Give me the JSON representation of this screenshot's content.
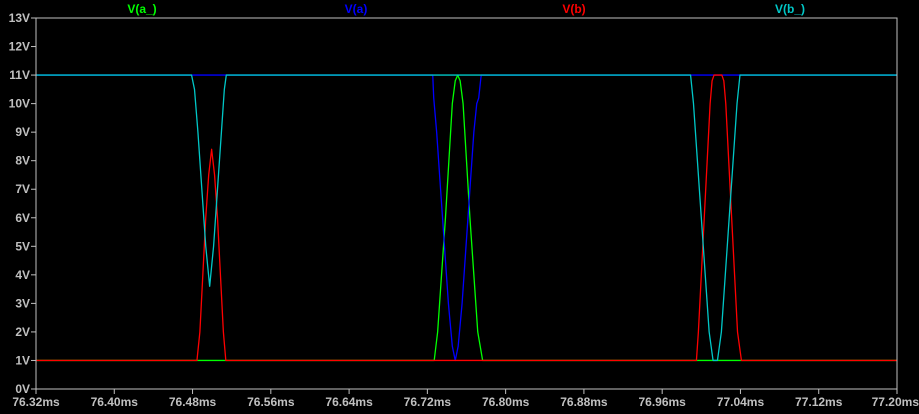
{
  "chart_data": {
    "type": "line",
    "title": "",
    "xlabel": "",
    "ylabel": "",
    "xlim": [
      76.32,
      77.2
    ],
    "ylim": [
      0,
      13
    ],
    "grid": false,
    "legend_placement": "top",
    "x_ticks": [
      "76.32ms",
      "76.40ms",
      "76.48ms",
      "76.56ms",
      "76.64ms",
      "76.72ms",
      "76.80ms",
      "76.88ms",
      "76.96ms",
      "77.04ms",
      "77.12ms",
      "77.20ms"
    ],
    "x_tick_values": [
      76.32,
      76.4,
      76.48,
      76.56,
      76.64,
      76.72,
      76.8,
      76.88,
      76.96,
      77.04,
      77.12,
      77.2
    ],
    "y_ticks": [
      "0V",
      "1V",
      "2V",
      "3V",
      "4V",
      "5V",
      "6V",
      "7V",
      "8V",
      "9V",
      "10V",
      "11V",
      "12V",
      "13V"
    ],
    "y_tick_values": [
      0,
      1,
      2,
      3,
      4,
      5,
      6,
      7,
      8,
      9,
      10,
      11,
      12,
      13
    ],
    "series": [
      {
        "name": "V(a_)",
        "color": "#00ff00",
        "points": [
          [
            76.32,
            1
          ],
          [
            76.727,
            1
          ],
          [
            76.7305,
            2
          ],
          [
            76.7345,
            4
          ],
          [
            76.7385,
            6
          ],
          [
            76.742,
            8
          ],
          [
            76.7455,
            10
          ],
          [
            76.7485,
            10.8
          ],
          [
            76.751,
            11
          ],
          [
            76.7535,
            10.8
          ],
          [
            76.7565,
            10
          ],
          [
            76.76,
            8
          ],
          [
            76.7635,
            6
          ],
          [
            76.7675,
            4
          ],
          [
            76.7715,
            2
          ],
          [
            76.7765,
            1
          ],
          [
            77.2,
            1
          ]
        ]
      },
      {
        "name": "V(a)",
        "color": "#0000ff",
        "points": [
          [
            76.32,
            11
          ],
          [
            76.7255,
            11
          ],
          [
            76.7265,
            10.2
          ],
          [
            76.7295,
            9
          ],
          [
            76.7335,
            7
          ],
          [
            76.7375,
            5
          ],
          [
            76.7415,
            3
          ],
          [
            76.7455,
            1.5
          ],
          [
            76.7485,
            1
          ],
          [
            76.7515,
            1.5
          ],
          [
            76.7555,
            3
          ],
          [
            76.7595,
            5
          ],
          [
            76.7635,
            7
          ],
          [
            76.7675,
            9
          ],
          [
            76.7705,
            10
          ],
          [
            76.7725,
            10.2
          ],
          [
            76.775,
            11
          ],
          [
            77.2,
            11
          ]
        ]
      },
      {
        "name": "V(b)",
        "color": "#ff0000",
        "points": [
          [
            76.32,
            1
          ],
          [
            76.4845,
            1
          ],
          [
            76.4875,
            2
          ],
          [
            76.4905,
            4
          ],
          [
            76.4935,
            6
          ],
          [
            76.4965,
            7.5
          ],
          [
            76.4995,
            8.4
          ],
          [
            76.5025,
            7.5
          ],
          [
            76.5055,
            6
          ],
          [
            76.5085,
            4
          ],
          [
            76.5115,
            2
          ],
          [
            76.514,
            1
          ],
          [
            76.995,
            1
          ],
          [
            76.997,
            2
          ],
          [
            77.0,
            4
          ],
          [
            77.003,
            6
          ],
          [
            77.006,
            8
          ],
          [
            77.009,
            10
          ],
          [
            77.011,
            10.8
          ],
          [
            77.013,
            11
          ],
          [
            77.021,
            11
          ],
          [
            77.023,
            10.8
          ],
          [
            77.025,
            10
          ],
          [
            77.028,
            8
          ],
          [
            77.031,
            6
          ],
          [
            77.034,
            4
          ],
          [
            77.037,
            2
          ],
          [
            77.041,
            1
          ],
          [
            77.2,
            1
          ]
        ]
      },
      {
        "name": "V(b_)",
        "color": "#00c8c8",
        "points": [
          [
            76.32,
            11
          ],
          [
            76.479,
            11
          ],
          [
            76.482,
            10.5
          ],
          [
            76.4855,
            9
          ],
          [
            76.4895,
            7
          ],
          [
            76.4935,
            5
          ],
          [
            76.4975,
            3.6
          ],
          [
            76.5015,
            5
          ],
          [
            76.5055,
            7
          ],
          [
            76.5095,
            9
          ],
          [
            76.5125,
            10.5
          ],
          [
            76.5145,
            11
          ],
          [
            76.989,
            11
          ],
          [
            76.992,
            10
          ],
          [
            76.996,
            8
          ],
          [
            77.0,
            6
          ],
          [
            77.004,
            4
          ],
          [
            77.008,
            2
          ],
          [
            77.012,
            1
          ],
          [
            77.0165,
            1
          ],
          [
            77.0205,
            2
          ],
          [
            77.0245,
            4
          ],
          [
            77.0285,
            6
          ],
          [
            77.0325,
            8
          ],
          [
            77.0365,
            10
          ],
          [
            77.0395,
            11
          ],
          [
            77.2,
            11
          ]
        ]
      }
    ]
  },
  "colors": {
    "background": "#000000",
    "axis": "#c0c0c0",
    "tick_text": "#c0c0c0"
  }
}
